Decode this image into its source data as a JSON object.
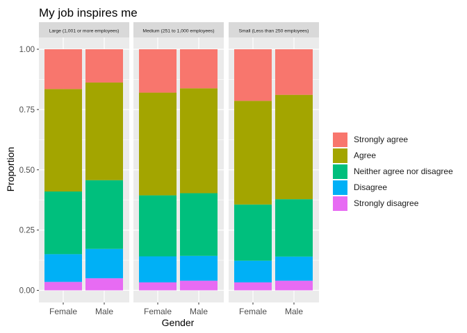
{
  "chart_data": {
    "type": "bar",
    "stacked": true,
    "title": "My job inspires me",
    "xlabel": "Gender",
    "ylabel": "Proportion",
    "ylim": [
      0,
      1
    ],
    "yticks": [
      "0.00",
      "0.25",
      "0.50",
      "0.75",
      "1.00"
    ],
    "grid": true,
    "legend_position": "right",
    "categories": [
      "Female",
      "Male"
    ],
    "facets": [
      {
        "label": "Large (1,001 or more employees)",
        "stacks": {
          "Female": [
            0.035,
            0.115,
            0.26,
            0.425,
            0.165
          ],
          "Male": [
            0.05,
            0.122,
            0.285,
            0.405,
            0.138
          ]
        }
      },
      {
        "label": "Medium (251 to 1,000 employees)",
        "stacks": {
          "Female": [
            0.033,
            0.108,
            0.253,
            0.426,
            0.18
          ],
          "Male": [
            0.04,
            0.103,
            0.26,
            0.435,
            0.162
          ]
        }
      },
      {
        "label": "Small (Less than 250 employees)",
        "stacks": {
          "Female": [
            0.033,
            0.09,
            0.233,
            0.43,
            0.214
          ],
          "Male": [
            0.04,
            0.1,
            0.238,
            0.433,
            0.189
          ]
        }
      }
    ],
    "series": [
      {
        "name": "Strongly disagree",
        "color": "#E76BF3"
      },
      {
        "name": "Disagree",
        "color": "#00B0F6"
      },
      {
        "name": "Neither agree nor disagree",
        "color": "#00BF7D"
      },
      {
        "name": "Agree",
        "color": "#A3A500"
      },
      {
        "name": "Strongly agree",
        "color": "#F8766D"
      }
    ],
    "legend_order": [
      "Strongly agree",
      "Agree",
      "Neither agree nor disagree",
      "Disagree",
      "Strongly disagree"
    ]
  },
  "colors": {
    "panel_background": "#EBEBEB",
    "strip_background": "#D9D9D9",
    "grid_major": "#FFFFFF",
    "text": "#4D4D4D"
  }
}
